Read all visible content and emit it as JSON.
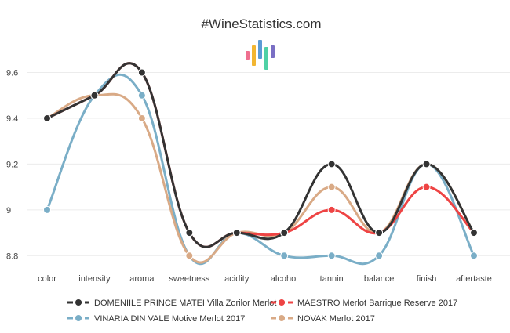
{
  "chart_data": {
    "type": "line",
    "title": "#WineStatistics.com",
    "xlabel": "",
    "ylabel": "",
    "categories": [
      "color",
      "intensity",
      "aroma",
      "sweetness",
      "acidity",
      "alcohol",
      "tannin",
      "balance",
      "finish",
      "aftertaste"
    ],
    "ylim": [
      8.76,
      9.66
    ],
    "yticks": [
      "8.8",
      "9",
      "9.2",
      "9.4",
      "9.6"
    ],
    "grid": true,
    "legend_position": "bottom",
    "series": [
      {
        "name": "DOMENIILE PRINCE MATEI Villa Zorilor Merlot",
        "color": "#333333",
        "values": [
          9.4,
          9.5,
          9.6,
          8.9,
          8.9,
          8.9,
          9.2,
          8.9,
          9.2,
          8.9
        ]
      },
      {
        "name": "MAESTRO Merlot Barrique Reserve 2017",
        "color": "#ee4444",
        "values": [
          9.4,
          9.5,
          9.6,
          8.9,
          8.9,
          8.9,
          9.0,
          8.9,
          9.1,
          8.9
        ]
      },
      {
        "name": "VINARIA DIN VALE Motive Merlot 2017",
        "color": "#7aaec7",
        "values": [
          9.0,
          9.5,
          9.5,
          8.8,
          8.9,
          8.8,
          8.8,
          8.8,
          9.2,
          8.8
        ]
      },
      {
        "name": "NOVAK Merlot 2017",
        "color": "#d9aa86",
        "values": [
          9.4,
          9.5,
          9.4,
          8.8,
          8.9,
          8.9,
          9.1,
          8.9,
          9.2,
          8.9
        ]
      }
    ],
    "logo_bar_colors": [
      "#ef6f8f",
      "#f2b632",
      "#5b9bd5",
      "#4fd1a5",
      "#7a6fc4"
    ]
  }
}
